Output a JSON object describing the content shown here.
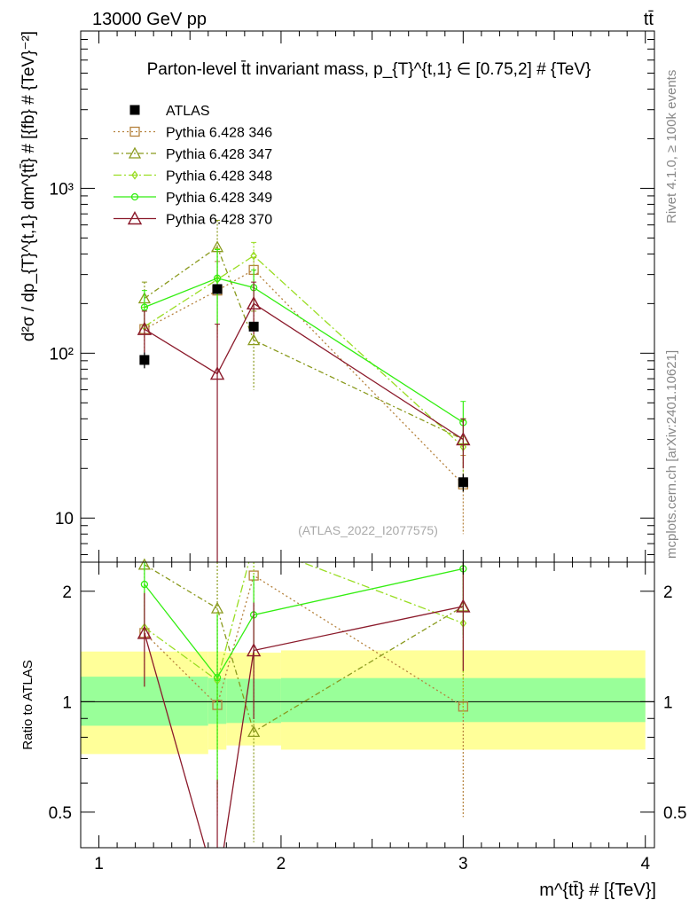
{
  "header": {
    "energy_label": "13000 GeV pp",
    "process_label": "tt̄"
  },
  "side_labels": {
    "rivet": "Rivet 4.1.0, ≥ 100k events",
    "mcplots": "mcplots.cern.ch [arXiv:2401.10621]"
  },
  "chart_data": {
    "type": "line",
    "title": "Parton-level t̄t invariant mass, p_{T}^{t,1} ∈ [0.75,2] # {TeV}",
    "watermark": "(ATLAS_2022_I2077575)",
    "xlabel": "m^{tt̄} # [{TeV}]",
    "ylabel": "d²σ / dp_{T}^{t,1} dm^{tt̄} # [{fb} # {TeV}⁻²]",
    "ratio_ylabel": "Ratio to ATLAS",
    "xlim": [
      0.9,
      4.05
    ],
    "ylim": [
      5.4,
      9000
    ],
    "ylog": true,
    "ratio_ylim": [
      0.4,
      2.4
    ],
    "ratio_ylog": true,
    "x_ticks": [
      "1",
      "2",
      "3",
      "4"
    ],
    "y_ticks": [
      "10",
      "10²",
      "10³"
    ],
    "ratio_ticks": [
      "0.5",
      "1",
      "2"
    ],
    "data": {
      "name": "ATLAS",
      "color": "#000000",
      "x": [
        1.25,
        1.65,
        1.85,
        3.0
      ],
      "values": [
        91,
        245,
        145,
        16.5
      ],
      "errors": [
        10,
        15,
        8,
        2
      ]
    },
    "mc_band": {
      "edges": [
        0.9,
        1.6,
        1.7,
        2.0,
        4.0
      ],
      "inner": [
        [
          0.86,
          1.17
        ],
        [
          0.87,
          1.16
        ],
        [
          0.875,
          1.155
        ],
        [
          0.88,
          1.16
        ]
      ],
      "outer": [
        [
          0.72,
          1.37
        ],
        [
          0.74,
          1.37
        ],
        [
          0.76,
          1.36
        ],
        [
          0.74,
          1.38
        ]
      ],
      "inner_color": "#99ff99",
      "outer_color": "#ffff99"
    },
    "series": [
      {
        "name": "Pythia 6.428 346",
        "color": "#b5823d",
        "dash": "2,3",
        "marker": "square",
        "values": [
          140,
          240,
          320,
          16
        ],
        "errors": [
          40,
          120,
          60,
          8
        ]
      },
      {
        "name": "Pythia 6.428 347",
        "color": "#8a9a1e",
        "dash": "6,3,2,3",
        "marker": "triangle",
        "values": [
          215,
          440,
          120,
          30
        ],
        "errors": [
          55,
          200,
          60,
          10
        ]
      },
      {
        "name": "Pythia 6.428 348",
        "color": "#99dd22",
        "dash": "9,3,2,3",
        "marker": "diamond",
        "values": [
          145,
          280,
          390,
          27
        ],
        "errors": [
          45,
          150,
          80,
          12
        ]
      },
      {
        "name": "Pythia 6.428 349",
        "color": "#33ee11",
        "dash": "",
        "marker": "circle",
        "values": [
          190,
          285,
          250,
          38
        ],
        "errors": [
          50,
          140,
          70,
          13
        ]
      },
      {
        "name": "Pythia 6.428 370",
        "color": "#8b1a2b",
        "dash": "",
        "marker": "triangle-open",
        "values": [
          140,
          75,
          200,
          30
        ],
        "errors": [
          40,
          75,
          70,
          10
        ]
      }
    ]
  }
}
